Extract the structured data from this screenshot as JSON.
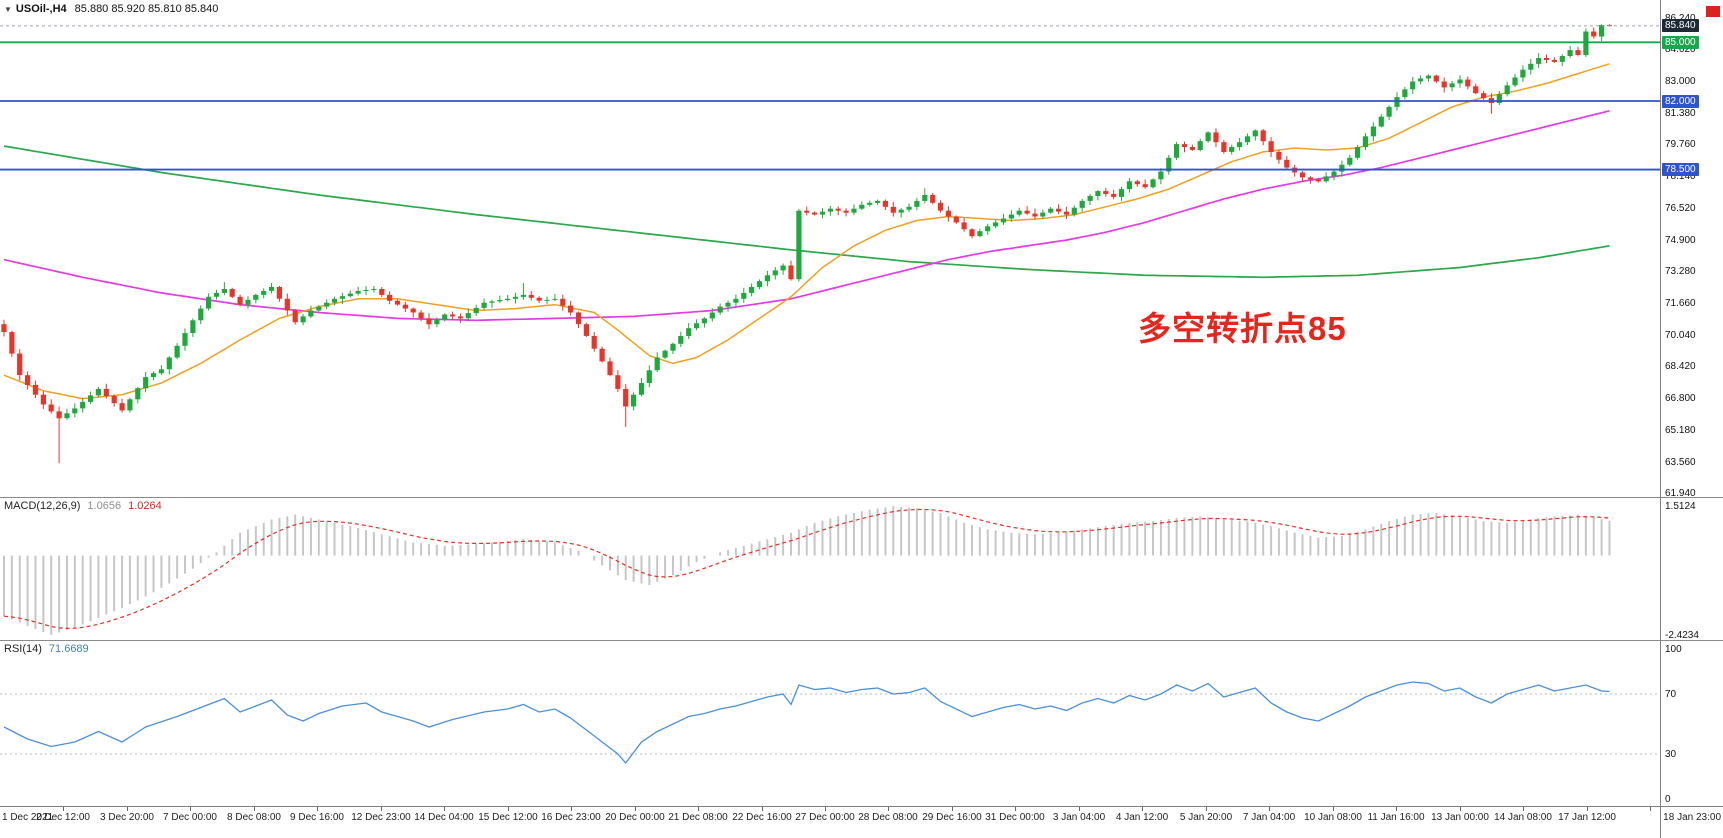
{
  "header": {
    "dropdown_icon": "▼",
    "symbol": "USOil-,H4",
    "ohlc": "85.880 85.920 85.810 85.840"
  },
  "annotation": {
    "text": "多空转折点85",
    "color": "#e6251c"
  },
  "colors": {
    "background": "#ffffff",
    "candle_up": "#1fa93d",
    "candle_down": "#e8352b",
    "ma_fast": "#efa01f",
    "ma_mid": "#e33ae3",
    "ma_slow": "#2aa84a",
    "bid_line": "#9aa4ae",
    "macd_hist": "#c6c6c6",
    "macd_signal": "#e03226",
    "rsi_line": "#4a90d9",
    "rsi_level": "#b9b9b9",
    "marker_red": "#dc231b"
  },
  "price_axis": {
    "gridlines": [
      {
        "value": 86.24,
        "label": "86.240"
      },
      {
        "value": 84.62,
        "label": "84.620"
      },
      {
        "value": 83.0,
        "label": "83.000"
      },
      {
        "value": 81.38,
        "label": "81.380"
      },
      {
        "value": 79.76,
        "label": "79.760"
      },
      {
        "value": 78.14,
        "label": "78.140"
      },
      {
        "value": 76.52,
        "label": "76.520"
      },
      {
        "value": 74.9,
        "label": "74.900"
      },
      {
        "value": 73.28,
        "label": "73.280"
      },
      {
        "value": 71.66,
        "label": "71.660"
      },
      {
        "value": 70.04,
        "label": "70.040"
      },
      {
        "value": 68.42,
        "label": "68.420"
      },
      {
        "value": 66.8,
        "label": "66.800"
      },
      {
        "value": 65.18,
        "label": "65.180"
      },
      {
        "value": 63.56,
        "label": "63.560"
      },
      {
        "value": 61.94,
        "label": "61.940"
      }
    ],
    "levels": [
      {
        "value": 85.0,
        "label": "85.000",
        "color": "#17a74d"
      },
      {
        "value": 82.0,
        "label": "82.000",
        "color": "#3053cf"
      },
      {
        "value": 78.5,
        "label": "78.500",
        "color": "#3053cf"
      }
    ],
    "current": {
      "value": 85.84,
      "label": "85.840",
      "bg": "#1d2a36"
    }
  },
  "macd": {
    "label": "MACD(12,26,9)",
    "main_value": "1.0656",
    "signal_value": "1.0264",
    "max": 1.5124,
    "min": -2.4234,
    "axis_max": "1.5124",
    "axis_min": "-2.4234"
  },
  "rsi": {
    "label": "RSI(14)",
    "value": "71.6689",
    "axis": [
      {
        "value": 100,
        "label": "100"
      },
      {
        "value": 70,
        "label": "70"
      },
      {
        "value": 30,
        "label": "30"
      },
      {
        "value": 0,
        "label": "0"
      }
    ],
    "levels": [
      70,
      30
    ]
  },
  "time_axis": {
    "labels": [
      "1 Dec 2021",
      "2 Dec 12:00",
      "3 Dec 20:00",
      "7 Dec 00:00",
      "8 Dec 08:00",
      "9 Dec 16:00",
      "12 Dec 23:00",
      "14 Dec 04:00",
      "15 Dec 12:00",
      "16 Dec 23:00",
      "20 Dec 00:00",
      "21 Dec 08:00",
      "22 Dec 16:00",
      "27 Dec 00:00",
      "28 Dec 08:00",
      "29 Dec 16:00",
      "31 Dec 00:00",
      "3 Jan 04:00",
      "4 Jan 12:00",
      "5 Jan 20:00",
      "7 Jan 04:00",
      "10 Jan 08:00",
      "11 Jan 16:00",
      "13 Jan 00:00",
      "14 Jan 08:00",
      "17 Jan 12:00",
      "18 Jan 23:00"
    ]
  },
  "chart_data": {
    "type": "candlestick",
    "symbol": "USOil",
    "timeframe": "H4",
    "current_price": 85.84,
    "visible_price_range": [
      61.94,
      86.24
    ],
    "candle_count": 205,
    "price_path": [
      [
        0,
        70.2
      ],
      [
        2,
        68.0
      ],
      [
        5,
        66.5
      ],
      [
        7,
        65.8
      ],
      [
        9,
        66.3
      ],
      [
        12,
        67.3
      ],
      [
        15,
        66.2
      ],
      [
        18,
        67.9
      ],
      [
        20,
        68.3
      ],
      [
        22,
        69.5
      ],
      [
        24,
        70.8
      ],
      [
        26,
        72.0
      ],
      [
        28,
        72.4
      ],
      [
        30,
        71.6
      ],
      [
        32,
        72.1
      ],
      [
        34,
        72.5
      ],
      [
        36,
        71.3
      ],
      [
        37,
        70.7
      ],
      [
        39,
        71.3
      ],
      [
        42,
        71.9
      ],
      [
        45,
        72.3
      ],
      [
        47,
        72.4
      ],
      [
        49,
        71.8
      ],
      [
        52,
        71.2
      ],
      [
        54,
        70.6
      ],
      [
        56,
        71.1
      ],
      [
        58,
        70.9
      ],
      [
        61,
        71.7
      ],
      [
        64,
        71.9
      ],
      [
        66,
        72.1
      ],
      [
        68,
        71.8
      ],
      [
        70,
        71.9
      ],
      [
        72,
        71.2
      ],
      [
        74,
        70.0
      ],
      [
        76,
        68.7
      ],
      [
        78,
        67.3
      ],
      [
        79,
        66.4
      ],
      [
        81,
        67.6
      ],
      [
        83,
        68.9
      ],
      [
        85,
        69.6
      ],
      [
        87,
        70.4
      ],
      [
        89,
        70.9
      ],
      [
        91,
        71.5
      ],
      [
        93,
        71.9
      ],
      [
        95,
        72.5
      ],
      [
        97,
        73.1
      ],
      [
        99,
        73.6
      ],
      [
        100,
        72.9
      ],
      [
        101,
        76.4
      ],
      [
        103,
        76.2
      ],
      [
        105,
        76.5
      ],
      [
        107,
        76.3
      ],
      [
        109,
        76.7
      ],
      [
        111,
        76.9
      ],
      [
        113,
        76.3
      ],
      [
        115,
        76.6
      ],
      [
        117,
        77.2
      ],
      [
        119,
        76.4
      ],
      [
        121,
        75.8
      ],
      [
        123,
        75.1
      ],
      [
        125,
        75.6
      ],
      [
        127,
        76.0
      ],
      [
        129,
        76.4
      ],
      [
        131,
        76.1
      ],
      [
        133,
        76.5
      ],
      [
        135,
        76.2
      ],
      [
        137,
        76.9
      ],
      [
        139,
        77.4
      ],
      [
        141,
        77.1
      ],
      [
        143,
        77.9
      ],
      [
        145,
        77.6
      ],
      [
        147,
        78.4
      ],
      [
        149,
        79.8
      ],
      [
        151,
        79.5
      ],
      [
        153,
        80.4
      ],
      [
        155,
        79.4
      ],
      [
        157,
        79.9
      ],
      [
        159,
        80.5
      ],
      [
        161,
        79.4
      ],
      [
        163,
        78.6
      ],
      [
        165,
        78.1
      ],
      [
        167,
        77.9
      ],
      [
        169,
        78.4
      ],
      [
        171,
        79.1
      ],
      [
        173,
        80.2
      ],
      [
        175,
        81.2
      ],
      [
        177,
        82.2
      ],
      [
        179,
        83.0
      ],
      [
        181,
        83.3
      ],
      [
        183,
        82.7
      ],
      [
        185,
        83.1
      ],
      [
        187,
        82.4
      ],
      [
        189,
        81.9
      ],
      [
        191,
        82.8
      ],
      [
        193,
        83.6
      ],
      [
        195,
        84.2
      ],
      [
        197,
        84.0
      ],
      [
        199,
        84.6
      ],
      [
        200,
        84.35
      ],
      [
        201,
        85.55
      ],
      [
        202,
        85.3
      ],
      [
        203,
        85.88
      ],
      [
        204,
        85.84
      ]
    ],
    "wick_overrides": [
      {
        "i": 7,
        "low": 63.5
      },
      {
        "i": 28,
        "high": 72.75
      },
      {
        "i": 66,
        "high": 72.7
      },
      {
        "i": 79,
        "low": 65.35
      },
      {
        "i": 117,
        "high": 77.55
      },
      {
        "i": 189,
        "low": 81.35
      },
      {
        "i": 201,
        "high": 85.7
      },
      {
        "i": 203,
        "high": 85.92
      },
      {
        "i": 204,
        "high": 85.92,
        "low": 85.81
      }
    ],
    "ma_slow_green": [
      [
        0,
        79.7
      ],
      [
        20,
        78.35
      ],
      [
        40,
        77.2
      ],
      [
        60,
        76.2
      ],
      [
        80,
        75.3
      ],
      [
        100,
        74.4
      ],
      [
        115,
        73.8
      ],
      [
        130,
        73.4
      ],
      [
        145,
        73.1
      ],
      [
        160,
        73.0
      ],
      [
        172,
        73.1
      ],
      [
        185,
        73.5
      ],
      [
        195,
        74.0
      ],
      [
        204,
        74.6
      ]
    ],
    "ma_mid_magenta": [
      [
        0,
        73.9
      ],
      [
        10,
        73.0
      ],
      [
        20,
        72.2
      ],
      [
        30,
        71.6
      ],
      [
        40,
        71.2
      ],
      [
        50,
        70.9
      ],
      [
        60,
        70.8
      ],
      [
        70,
        70.9
      ],
      [
        80,
        71.0
      ],
      [
        90,
        71.3
      ],
      [
        100,
        71.9
      ],
      [
        105,
        72.4
      ],
      [
        110,
        72.9
      ],
      [
        115,
        73.4
      ],
      [
        120,
        73.9
      ],
      [
        125,
        74.3
      ],
      [
        130,
        74.6
      ],
      [
        135,
        74.9
      ],
      [
        140,
        75.3
      ],
      [
        145,
        75.8
      ],
      [
        150,
        76.4
      ],
      [
        155,
        77.0
      ],
      [
        160,
        77.5
      ],
      [
        165,
        77.9
      ],
      [
        170,
        78.2
      ],
      [
        175,
        78.6
      ],
      [
        180,
        79.1
      ],
      [
        185,
        79.6
      ],
      [
        190,
        80.1
      ],
      [
        195,
        80.6
      ],
      [
        200,
        81.1
      ],
      [
        204,
        81.5
      ]
    ],
    "ma_fast_orange": [
      [
        0,
        68.0
      ],
      [
        5,
        67.2
      ],
      [
        10,
        66.8
      ],
      [
        15,
        67.0
      ],
      [
        20,
        67.6
      ],
      [
        25,
        68.6
      ],
      [
        30,
        69.8
      ],
      [
        35,
        70.9
      ],
      [
        40,
        71.5
      ],
      [
        45,
        71.9
      ],
      [
        50,
        71.9
      ],
      [
        55,
        71.6
      ],
      [
        60,
        71.3
      ],
      [
        65,
        71.4
      ],
      [
        70,
        71.6
      ],
      [
        75,
        71.2
      ],
      [
        78,
        70.3
      ],
      [
        82,
        69.0
      ],
      [
        85,
        68.6
      ],
      [
        88,
        68.9
      ],
      [
        92,
        69.8
      ],
      [
        96,
        70.9
      ],
      [
        100,
        72.0
      ],
      [
        104,
        73.5
      ],
      [
        108,
        74.6
      ],
      [
        112,
        75.4
      ],
      [
        116,
        75.9
      ],
      [
        120,
        76.1
      ],
      [
        124,
        76.0
      ],
      [
        128,
        75.9
      ],
      [
        132,
        76.0
      ],
      [
        136,
        76.2
      ],
      [
        140,
        76.6
      ],
      [
        144,
        77.0
      ],
      [
        148,
        77.5
      ],
      [
        152,
        78.2
      ],
      [
        156,
        78.9
      ],
      [
        160,
        79.4
      ],
      [
        164,
        79.6
      ],
      [
        168,
        79.5
      ],
      [
        172,
        79.6
      ],
      [
        176,
        80.1
      ],
      [
        180,
        80.9
      ],
      [
        184,
        81.7
      ],
      [
        188,
        82.2
      ],
      [
        192,
        82.5
      ],
      [
        196,
        82.9
      ],
      [
        200,
        83.4
      ],
      [
        204,
        83.9
      ]
    ],
    "macd_path": [
      [
        0,
        -1.85
      ],
      [
        3,
        -2.15
      ],
      [
        6,
        -2.42
      ],
      [
        9,
        -2.2
      ],
      [
        12,
        -1.9
      ],
      [
        15,
        -1.6
      ],
      [
        18,
        -1.25
      ],
      [
        21,
        -0.85
      ],
      [
        24,
        -0.4
      ],
      [
        27,
        0.1
      ],
      [
        30,
        0.7
      ],
      [
        34,
        1.1
      ],
      [
        37,
        1.25
      ],
      [
        40,
        1.1
      ],
      [
        44,
        0.9
      ],
      [
        48,
        0.65
      ],
      [
        52,
        0.4
      ],
      [
        56,
        0.3
      ],
      [
        60,
        0.35
      ],
      [
        64,
        0.45
      ],
      [
        66,
        0.5
      ],
      [
        70,
        0.4
      ],
      [
        73,
        0.15
      ],
      [
        76,
        -0.3
      ],
      [
        79,
        -0.75
      ],
      [
        82,
        -0.9
      ],
      [
        85,
        -0.6
      ],
      [
        88,
        -0.2
      ],
      [
        91,
        0.1
      ],
      [
        94,
        0.3
      ],
      [
        97,
        0.5
      ],
      [
        100,
        0.7
      ],
      [
        103,
        1.0
      ],
      [
        106,
        1.2
      ],
      [
        110,
        1.4
      ],
      [
        113,
        1.51
      ],
      [
        116,
        1.45
      ],
      [
        119,
        1.3
      ],
      [
        122,
        1.0
      ],
      [
        125,
        0.8
      ],
      [
        128,
        0.7
      ],
      [
        131,
        0.65
      ],
      [
        134,
        0.7
      ],
      [
        137,
        0.8
      ],
      [
        140,
        0.9
      ],
      [
        143,
        1.0
      ],
      [
        146,
        1.05
      ],
      [
        149,
        1.15
      ],
      [
        152,
        1.2
      ],
      [
        155,
        1.1
      ],
      [
        158,
        1.05
      ],
      [
        161,
        0.9
      ],
      [
        164,
        0.7
      ],
      [
        167,
        0.55
      ],
      [
        170,
        0.6
      ],
      [
        173,
        0.8
      ],
      [
        176,
        1.05
      ],
      [
        179,
        1.25
      ],
      [
        182,
        1.3
      ],
      [
        185,
        1.2
      ],
      [
        188,
        1.05
      ],
      [
        191,
        1.0
      ],
      [
        194,
        1.1
      ],
      [
        197,
        1.2
      ],
      [
        200,
        1.25
      ],
      [
        204,
        1.0656
      ]
    ],
    "rsi_path": [
      [
        0,
        48
      ],
      [
        3,
        40
      ],
      [
        6,
        35
      ],
      [
        9,
        38
      ],
      [
        12,
        45
      ],
      [
        15,
        38
      ],
      [
        18,
        48
      ],
      [
        22,
        55
      ],
      [
        26,
        63
      ],
      [
        28,
        67
      ],
      [
        30,
        58
      ],
      [
        32,
        62
      ],
      [
        34,
        66
      ],
      [
        36,
        56
      ],
      [
        38,
        52
      ],
      [
        40,
        57
      ],
      [
        43,
        62
      ],
      [
        46,
        64
      ],
      [
        48,
        58
      ],
      [
        52,
        52
      ],
      [
        54,
        48
      ],
      [
        57,
        53
      ],
      [
        61,
        58
      ],
      [
        64,
        60
      ],
      [
        66,
        63
      ],
      [
        68,
        58
      ],
      [
        70,
        60
      ],
      [
        72,
        54
      ],
      [
        74,
        46
      ],
      [
        76,
        38
      ],
      [
        78,
        30
      ],
      [
        79,
        24
      ],
      [
        81,
        38
      ],
      [
        83,
        45
      ],
      [
        85,
        50
      ],
      [
        87,
        55
      ],
      [
        89,
        57
      ],
      [
        91,
        60
      ],
      [
        93,
        62
      ],
      [
        95,
        65
      ],
      [
        97,
        68
      ],
      [
        99,
        70
      ],
      [
        100,
        63
      ],
      [
        101,
        76
      ],
      [
        103,
        73
      ],
      [
        105,
        74
      ],
      [
        107,
        71
      ],
      [
        109,
        73
      ],
      [
        111,
        74
      ],
      [
        113,
        70
      ],
      [
        115,
        71
      ],
      [
        117,
        74
      ],
      [
        119,
        65
      ],
      [
        121,
        60
      ],
      [
        123,
        55
      ],
      [
        125,
        58
      ],
      [
        127,
        61
      ],
      [
        129,
        63
      ],
      [
        131,
        60
      ],
      [
        133,
        62
      ],
      [
        135,
        59
      ],
      [
        137,
        64
      ],
      [
        139,
        67
      ],
      [
        141,
        64
      ],
      [
        143,
        69
      ],
      [
        145,
        66
      ],
      [
        147,
        70
      ],
      [
        149,
        76
      ],
      [
        151,
        72
      ],
      [
        153,
        77
      ],
      [
        155,
        68
      ],
      [
        157,
        71
      ],
      [
        159,
        74
      ],
      [
        161,
        64
      ],
      [
        163,
        58
      ],
      [
        165,
        54
      ],
      [
        167,
        52
      ],
      [
        169,
        57
      ],
      [
        171,
        62
      ],
      [
        173,
        68
      ],
      [
        175,
        72
      ],
      [
        177,
        76
      ],
      [
        179,
        78
      ],
      [
        181,
        77
      ],
      [
        183,
        72
      ],
      [
        185,
        74
      ],
      [
        187,
        68
      ],
      [
        189,
        64
      ],
      [
        191,
        70
      ],
      [
        193,
        73
      ],
      [
        195,
        76
      ],
      [
        197,
        72
      ],
      [
        199,
        74
      ],
      [
        201,
        76
      ],
      [
        203,
        72
      ],
      [
        204,
        71.6689
      ]
    ]
  }
}
